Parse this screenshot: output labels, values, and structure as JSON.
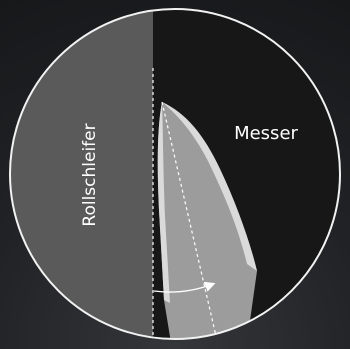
{
  "diagram": {
    "labels": {
      "left": "Rollschleifer",
      "right": "Messer"
    },
    "colors": {
      "background": "#1d1f22",
      "circle_outline": "#f2f2f2",
      "left_panel": "#5a5a5a",
      "right_panel": "#171717",
      "blade_highlight": "#dadada",
      "blade_body": "#9c9c9c",
      "guide_lines": "#ffffff",
      "text": "#ffffff"
    }
  }
}
